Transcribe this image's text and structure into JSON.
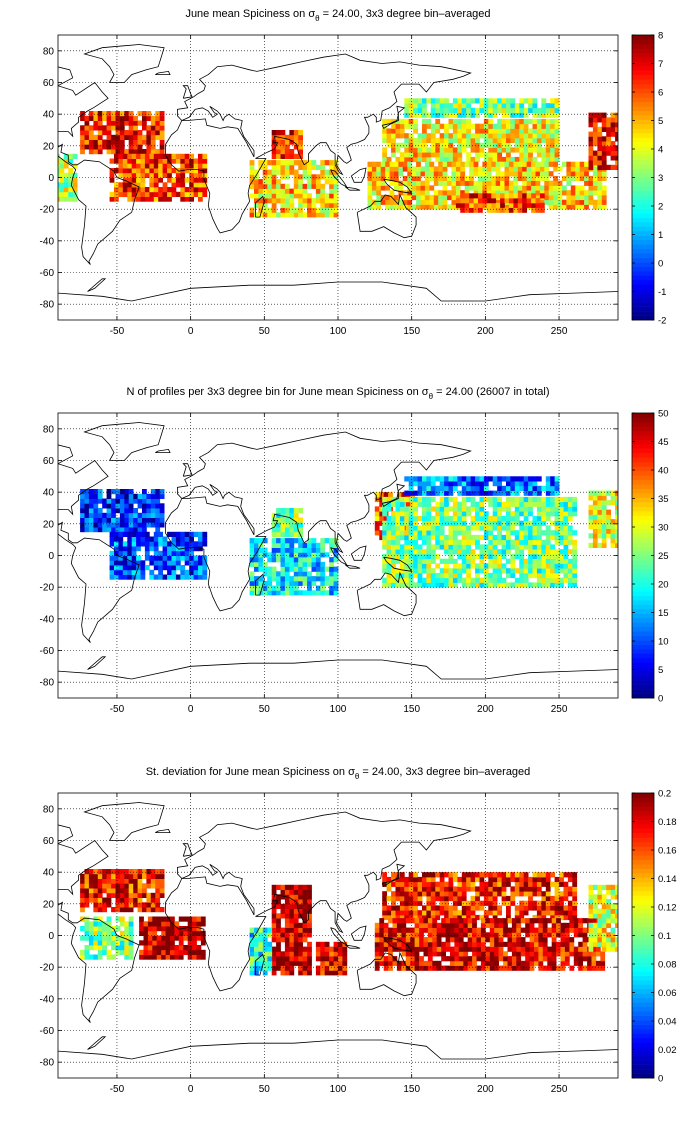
{
  "chart_data": [
    {
      "type": "heatmap",
      "title": "June mean Spiciness on σθ = 24.00, 3x3 degree bin–averaged",
      "title_parts": {
        "pre": "June mean Spiciness on σ",
        "sub": "θ",
        "post": " = 24.00, 3x3 degree bin–averaged"
      },
      "xlabel": "",
      "ylabel": "",
      "xlim": [
        -90,
        290
      ],
      "ylim": [
        -90,
        90
      ],
      "xticks": [
        -50,
        0,
        50,
        100,
        150,
        200,
        250
      ],
      "yticks": [
        -80,
        -60,
        -40,
        -20,
        0,
        20,
        40,
        60,
        80
      ],
      "grid": true,
      "colorbar": {
        "min": -2,
        "max": 8,
        "ticks": [
          -2,
          -1,
          0,
          1,
          2,
          3,
          4,
          5,
          6,
          7,
          8
        ],
        "colormap": "jet"
      },
      "regions": [
        {
          "x": [
            -75,
            -20
          ],
          "y": [
            15,
            40
          ],
          "value": 6.6
        },
        {
          "x": [
            -55,
            10
          ],
          "y": [
            -15,
            15
          ],
          "value": 6.2
        },
        {
          "x": [
            -95,
            -78
          ],
          "y": [
            -15,
            15
          ],
          "value": 3.5
        },
        {
          "x": [
            55,
            75
          ],
          "y": [
            12,
            30
          ],
          "value": 6.5
        },
        {
          "x": [
            40,
            100
          ],
          "y": [
            -25,
            10
          ],
          "value": 4.6
        },
        {
          "x": [
            130,
            250
          ],
          "y": [
            10,
            35
          ],
          "value": 4.3
        },
        {
          "x": [
            120,
            280
          ],
          "y": [
            -20,
            10
          ],
          "value": 4.6
        },
        {
          "x": [
            180,
            240
          ],
          "y": [
            -22,
            -10
          ],
          "value": 6.2
        },
        {
          "x": [
            145,
            250
          ],
          "y": [
            38,
            50
          ],
          "value": 3.0
        },
        {
          "x": [
            270,
            290
          ],
          "y": [
            5,
            40
          ],
          "value": 6.8
        }
      ]
    },
    {
      "type": "heatmap",
      "title": "N of profiles per 3x3 degree bin for June mean Spiciness on σθ = 24.00 (26007 in total)",
      "title_parts": {
        "pre": "N of profiles per 3x3 degree bin for June mean Spiciness on σ",
        "sub": "θ",
        "post": " = 24.00 (26007 in total)"
      },
      "xlabel": "",
      "ylabel": "",
      "xlim": [
        -90,
        290
      ],
      "ylim": [
        -90,
        90
      ],
      "xticks": [
        -50,
        0,
        50,
        100,
        150,
        200,
        250
      ],
      "yticks": [
        -80,
        -60,
        -40,
        -20,
        0,
        20,
        40,
        60,
        80
      ],
      "grid": true,
      "colorbar": {
        "min": 0,
        "max": 50,
        "ticks": [
          0,
          5,
          10,
          15,
          20,
          25,
          30,
          35,
          40,
          45,
          50
        ],
        "colormap": "jet"
      },
      "regions": [
        {
          "x": [
            -75,
            -20
          ],
          "y": [
            15,
            40
          ],
          "value": 8
        },
        {
          "x": [
            -55,
            10
          ],
          "y": [
            -15,
            15
          ],
          "value": 10
        },
        {
          "x": [
            55,
            75
          ],
          "y": [
            12,
            30
          ],
          "value": 25
        },
        {
          "x": [
            40,
            100
          ],
          "y": [
            -25,
            10
          ],
          "value": 18
        },
        {
          "x": [
            125,
            150
          ],
          "y": [
            10,
            40
          ],
          "value": 40
        },
        {
          "x": [
            130,
            260
          ],
          "y": [
            -20,
            35
          ],
          "value": 25
        },
        {
          "x": [
            145,
            250
          ],
          "y": [
            38,
            50
          ],
          "value": 12
        },
        {
          "x": [
            270,
            290
          ],
          "y": [
            5,
            40
          ],
          "value": 30
        }
      ]
    },
    {
      "type": "heatmap",
      "title": "St. deviation for June mean Spiciness on σθ = 24.00, 3x3 degree bin–averaged",
      "title_parts": {
        "pre": "St. deviation for June mean Spiciness on σ",
        "sub": "θ",
        "post": " = 24.00, 3x3 degree bin–averaged"
      },
      "xlabel": "",
      "ylabel": "",
      "xlim": [
        -90,
        290
      ],
      "ylim": [
        -90,
        90
      ],
      "xticks": [
        -50,
        0,
        50,
        100,
        150,
        200,
        250
      ],
      "yticks": [
        -80,
        -60,
        -40,
        -20,
        0,
        20,
        40,
        60,
        80
      ],
      "grid": true,
      "colorbar": {
        "min": 0,
        "max": 0.2,
        "ticks": [
          0,
          0.02,
          0.04,
          0.06,
          0.08,
          0.1,
          0.12,
          0.14,
          0.16,
          0.18,
          0.2
        ],
        "colormap": "jet"
      },
      "regions": [
        {
          "x": [
            -75,
            -20
          ],
          "y": [
            15,
            40
          ],
          "value": 0.17
        },
        {
          "x": [
            -35,
            10
          ],
          "y": [
            -15,
            10
          ],
          "value": 0.19
        },
        {
          "x": [
            -75,
            -40
          ],
          "y": [
            -15,
            10
          ],
          "value": 0.1
        },
        {
          "x": [
            55,
            80
          ],
          "y": [
            -25,
            30
          ],
          "value": 0.19
        },
        {
          "x": [
            40,
            55
          ],
          "y": [
            -25,
            5
          ],
          "value": 0.08
        },
        {
          "x": [
            85,
            105
          ],
          "y": [
            -25,
            -5
          ],
          "value": 0.18
        },
        {
          "x": [
            130,
            260
          ],
          "y": [
            10,
            40
          ],
          "value": 0.17
        },
        {
          "x": [
            125,
            280
          ],
          "y": [
            -22,
            10
          ],
          "value": 0.18
        },
        {
          "x": [
            270,
            290
          ],
          "y": [
            -10,
            30
          ],
          "value": 0.12
        }
      ]
    }
  ]
}
